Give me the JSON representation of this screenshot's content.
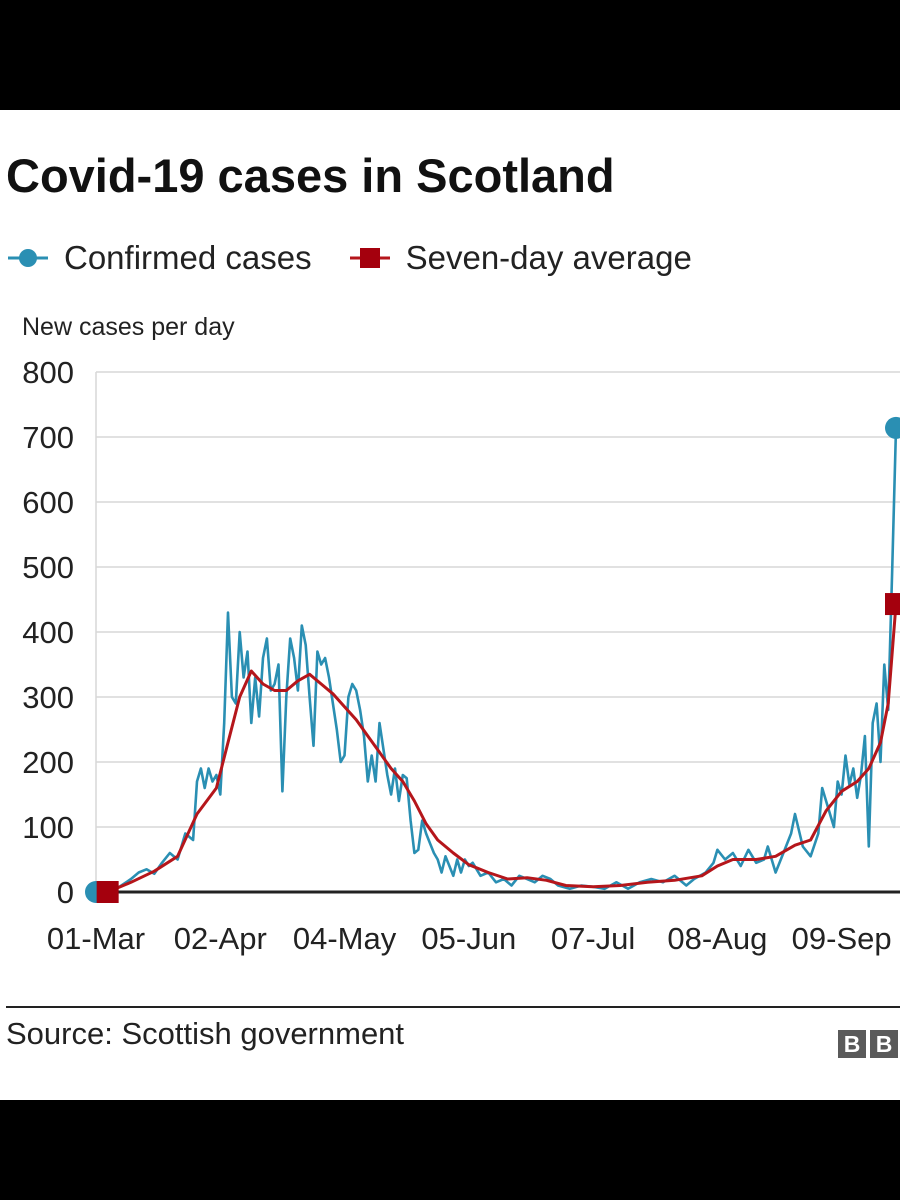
{
  "title": "Covid-19 cases in Scotland",
  "legend": {
    "confirmed_label": "Confirmed cases",
    "average_label": "Seven-day average"
  },
  "colors": {
    "confirmed": "#2a8fb3",
    "average": "#b5161b",
    "grid": "#d7d7d7",
    "axis": "#222222",
    "text": "#222222"
  },
  "source": "Source: Scottish government",
  "logo": [
    "B",
    "B"
  ],
  "chart_data": {
    "type": "line",
    "title": "Covid-19 cases in Scotland",
    "ylabel": "New cases per day",
    "xlabel": "",
    "ylim": [
      0,
      800
    ],
    "yticks": [
      0,
      100,
      200,
      300,
      400,
      500,
      600,
      700,
      800
    ],
    "xlim": [
      "2020-03-01",
      "2020-09-23"
    ],
    "xticks": [
      {
        "date": "2020-03-01",
        "label": "01-Mar"
      },
      {
        "date": "2020-04-02",
        "label": "02-Apr"
      },
      {
        "date": "2020-05-04",
        "label": "04-May"
      },
      {
        "date": "2020-06-05",
        "label": "05-Jun"
      },
      {
        "date": "2020-07-07",
        "label": "07-Jul"
      },
      {
        "date": "2020-08-08",
        "label": "08-Aug"
      },
      {
        "date": "2020-09-09",
        "label": "09-Sep"
      }
    ],
    "grid": true,
    "legend_position": "top-left",
    "series": [
      {
        "name": "Confirmed cases",
        "marker": "circle",
        "points": [
          [
            "2020-03-01",
            0
          ],
          [
            "2020-03-04",
            3
          ],
          [
            "2020-03-07",
            8
          ],
          [
            "2020-03-10",
            20
          ],
          [
            "2020-03-12",
            30
          ],
          [
            "2020-03-14",
            35
          ],
          [
            "2020-03-16",
            28
          ],
          [
            "2020-03-18",
            45
          ],
          [
            "2020-03-20",
            60
          ],
          [
            "2020-03-22",
            50
          ],
          [
            "2020-03-24",
            90
          ],
          [
            "2020-03-26",
            80
          ],
          [
            "2020-03-27",
            170
          ],
          [
            "2020-03-28",
            190
          ],
          [
            "2020-03-29",
            160
          ],
          [
            "2020-03-30",
            190
          ],
          [
            "2020-03-31",
            170
          ],
          [
            "2020-04-01",
            180
          ],
          [
            "2020-04-02",
            150
          ],
          [
            "2020-04-03",
            260
          ],
          [
            "2020-04-04",
            430
          ],
          [
            "2020-04-05",
            300
          ],
          [
            "2020-04-06",
            290
          ],
          [
            "2020-04-07",
            400
          ],
          [
            "2020-04-08",
            330
          ],
          [
            "2020-04-09",
            370
          ],
          [
            "2020-04-10",
            260
          ],
          [
            "2020-04-11",
            330
          ],
          [
            "2020-04-12",
            270
          ],
          [
            "2020-04-13",
            360
          ],
          [
            "2020-04-14",
            390
          ],
          [
            "2020-04-15",
            310
          ],
          [
            "2020-04-16",
            320
          ],
          [
            "2020-04-17",
            350
          ],
          [
            "2020-04-18",
            155
          ],
          [
            "2020-04-19",
            300
          ],
          [
            "2020-04-20",
            390
          ],
          [
            "2020-04-21",
            360
          ],
          [
            "2020-04-22",
            310
          ],
          [
            "2020-04-23",
            410
          ],
          [
            "2020-04-24",
            380
          ],
          [
            "2020-04-25",
            300
          ],
          [
            "2020-04-26",
            225
          ],
          [
            "2020-04-27",
            370
          ],
          [
            "2020-04-28",
            350
          ],
          [
            "2020-04-29",
            360
          ],
          [
            "2020-04-30",
            330
          ],
          [
            "2020-05-01",
            290
          ],
          [
            "2020-05-02",
            250
          ],
          [
            "2020-05-03",
            200
          ],
          [
            "2020-05-04",
            210
          ],
          [
            "2020-05-05",
            300
          ],
          [
            "2020-05-06",
            320
          ],
          [
            "2020-05-07",
            310
          ],
          [
            "2020-05-08",
            280
          ],
          [
            "2020-05-09",
            240
          ],
          [
            "2020-05-10",
            170
          ],
          [
            "2020-05-11",
            210
          ],
          [
            "2020-05-12",
            170
          ],
          [
            "2020-05-13",
            260
          ],
          [
            "2020-05-14",
            220
          ],
          [
            "2020-05-15",
            180
          ],
          [
            "2020-05-16",
            150
          ],
          [
            "2020-05-17",
            190
          ],
          [
            "2020-05-18",
            140
          ],
          [
            "2020-05-19",
            180
          ],
          [
            "2020-05-20",
            175
          ],
          [
            "2020-05-21",
            110
          ],
          [
            "2020-05-22",
            60
          ],
          [
            "2020-05-23",
            65
          ],
          [
            "2020-05-24",
            110
          ],
          [
            "2020-05-25",
            90
          ],
          [
            "2020-05-26",
            75
          ],
          [
            "2020-05-27",
            60
          ],
          [
            "2020-05-28",
            50
          ],
          [
            "2020-05-29",
            30
          ],
          [
            "2020-05-30",
            55
          ],
          [
            "2020-05-31",
            40
          ],
          [
            "2020-06-01",
            25
          ],
          [
            "2020-06-02",
            50
          ],
          [
            "2020-06-03",
            30
          ],
          [
            "2020-06-04",
            50
          ],
          [
            "2020-06-05",
            40
          ],
          [
            "2020-06-06",
            45
          ],
          [
            "2020-06-08",
            25
          ],
          [
            "2020-06-10",
            30
          ],
          [
            "2020-06-12",
            15
          ],
          [
            "2020-06-14",
            20
          ],
          [
            "2020-06-16",
            10
          ],
          [
            "2020-06-18",
            25
          ],
          [
            "2020-06-20",
            20
          ],
          [
            "2020-06-22",
            15
          ],
          [
            "2020-06-24",
            25
          ],
          [
            "2020-06-26",
            20
          ],
          [
            "2020-06-28",
            10
          ],
          [
            "2020-07-01",
            5
          ],
          [
            "2020-07-04",
            10
          ],
          [
            "2020-07-07",
            8
          ],
          [
            "2020-07-10",
            5
          ],
          [
            "2020-07-13",
            15
          ],
          [
            "2020-07-16",
            5
          ],
          [
            "2020-07-19",
            15
          ],
          [
            "2020-07-22",
            20
          ],
          [
            "2020-07-25",
            15
          ],
          [
            "2020-07-28",
            25
          ],
          [
            "2020-07-31",
            10
          ],
          [
            "2020-08-02",
            20
          ],
          [
            "2020-08-05",
            30
          ],
          [
            "2020-08-07",
            45
          ],
          [
            "2020-08-08",
            65
          ],
          [
            "2020-08-10",
            50
          ],
          [
            "2020-08-12",
            60
          ],
          [
            "2020-08-14",
            40
          ],
          [
            "2020-08-16",
            65
          ],
          [
            "2020-08-18",
            45
          ],
          [
            "2020-08-20",
            50
          ],
          [
            "2020-08-21",
            70
          ],
          [
            "2020-08-23",
            30
          ],
          [
            "2020-08-25",
            60
          ],
          [
            "2020-08-27",
            90
          ],
          [
            "2020-08-28",
            120
          ],
          [
            "2020-08-30",
            70
          ],
          [
            "2020-09-01",
            55
          ],
          [
            "2020-09-03",
            90
          ],
          [
            "2020-09-04",
            160
          ],
          [
            "2020-09-05",
            140
          ],
          [
            "2020-09-07",
            100
          ],
          [
            "2020-09-08",
            170
          ],
          [
            "2020-09-09",
            150
          ],
          [
            "2020-09-10",
            210
          ],
          [
            "2020-09-11",
            165
          ],
          [
            "2020-09-12",
            190
          ],
          [
            "2020-09-13",
            145
          ],
          [
            "2020-09-14",
            180
          ],
          [
            "2020-09-15",
            240
          ],
          [
            "2020-09-16",
            70
          ],
          [
            "2020-09-17",
            260
          ],
          [
            "2020-09-18",
            290
          ],
          [
            "2020-09-19",
            200
          ],
          [
            "2020-09-20",
            350
          ],
          [
            "2020-09-21",
            280
          ],
          [
            "2020-09-22",
            490
          ],
          [
            "2020-09-23",
            714
          ]
        ]
      },
      {
        "name": "Seven-day average",
        "marker": "square",
        "points": [
          [
            "2020-03-04",
            0
          ],
          [
            "2020-03-10",
            15
          ],
          [
            "2020-03-16",
            32
          ],
          [
            "2020-03-22",
            55
          ],
          [
            "2020-03-27",
            120
          ],
          [
            "2020-04-01",
            160
          ],
          [
            "2020-04-04",
            230
          ],
          [
            "2020-04-07",
            300
          ],
          [
            "2020-04-10",
            340
          ],
          [
            "2020-04-13",
            320
          ],
          [
            "2020-04-16",
            310
          ],
          [
            "2020-04-19",
            310
          ],
          [
            "2020-04-22",
            325
          ],
          [
            "2020-04-25",
            335
          ],
          [
            "2020-04-28",
            320
          ],
          [
            "2020-05-01",
            305
          ],
          [
            "2020-05-04",
            285
          ],
          [
            "2020-05-07",
            265
          ],
          [
            "2020-05-10",
            240
          ],
          [
            "2020-05-13",
            215
          ],
          [
            "2020-05-16",
            190
          ],
          [
            "2020-05-19",
            170
          ],
          [
            "2020-05-22",
            140
          ],
          [
            "2020-05-25",
            105
          ],
          [
            "2020-05-28",
            80
          ],
          [
            "2020-06-01",
            60
          ],
          [
            "2020-06-05",
            42
          ],
          [
            "2020-06-10",
            30
          ],
          [
            "2020-06-15",
            20
          ],
          [
            "2020-06-20",
            22
          ],
          [
            "2020-06-25",
            18
          ],
          [
            "2020-06-30",
            10
          ],
          [
            "2020-07-07",
            8
          ],
          [
            "2020-07-14",
            10
          ],
          [
            "2020-07-21",
            15
          ],
          [
            "2020-07-28",
            18
          ],
          [
            "2020-08-04",
            25
          ],
          [
            "2020-08-08",
            40
          ],
          [
            "2020-08-12",
            50
          ],
          [
            "2020-08-18",
            50
          ],
          [
            "2020-08-23",
            55
          ],
          [
            "2020-08-28",
            72
          ],
          [
            "2020-09-01",
            80
          ],
          [
            "2020-09-05",
            125
          ],
          [
            "2020-09-09",
            155
          ],
          [
            "2020-09-13",
            170
          ],
          [
            "2020-09-16",
            190
          ],
          [
            "2020-09-19",
            230
          ],
          [
            "2020-09-21",
            290
          ],
          [
            "2020-09-23",
            443
          ]
        ]
      }
    ]
  }
}
